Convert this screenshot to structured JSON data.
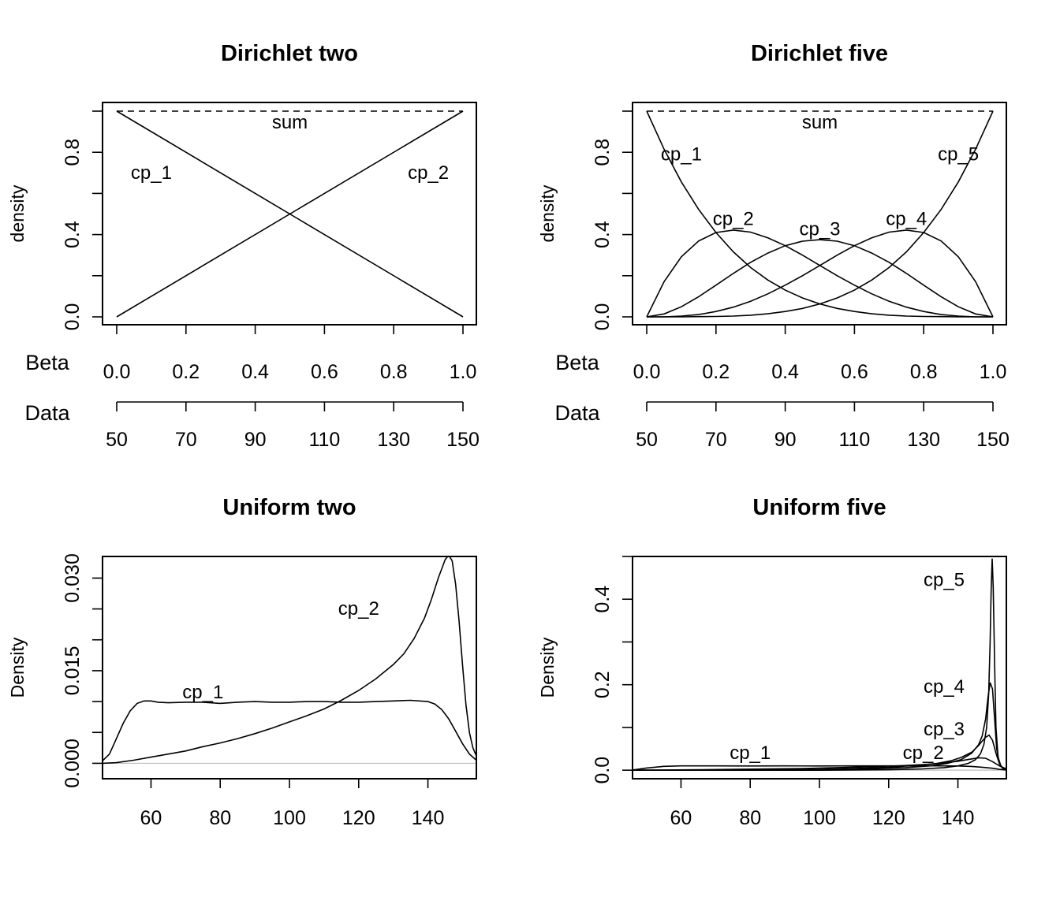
{
  "chart_data": [
    {
      "id": "p1",
      "type": "line",
      "title": "Dirichlet two",
      "ylabel": "density",
      "xlim": [
        0,
        1
      ],
      "ylim": [
        0,
        1
      ],
      "y_ticks": [
        0.0,
        0.2,
        0.4,
        0.6,
        0.8,
        1.0
      ],
      "y_tick_labels": [
        {
          "v": 0.0,
          "t": "0.0"
        },
        {
          "v": 0.4,
          "t": "0.4"
        },
        {
          "v": 0.8,
          "t": "0.8"
        }
      ],
      "beta_axis": {
        "label": "Beta",
        "ticks": [
          0.0,
          0.2,
          0.4,
          0.6,
          0.8,
          1.0
        ],
        "tick_labels": [
          "0.0",
          "0.2",
          "0.4",
          "0.6",
          "0.8",
          "1.0"
        ]
      },
      "data_axis": {
        "label": "Data",
        "ticks": [
          50,
          70,
          90,
          110,
          130,
          150
        ],
        "tick_labels": [
          "50",
          "70",
          "90",
          "110",
          "130",
          "150"
        ]
      },
      "series": [
        {
          "name": "cp_1",
          "x": [
            0,
            1
          ],
          "y": [
            1,
            0
          ],
          "label_at": [
            0.1,
            0.7
          ]
        },
        {
          "name": "cp_2",
          "x": [
            0,
            1
          ],
          "y": [
            0,
            1
          ],
          "label_at": [
            0.9,
            0.7
          ]
        },
        {
          "name": "sum",
          "dashed": true,
          "x": [
            0,
            1
          ],
          "y": [
            1,
            1
          ],
          "label_at": [
            0.5,
            0.945
          ]
        }
      ]
    },
    {
      "id": "p2",
      "type": "line",
      "title": "Dirichlet five",
      "ylabel": "density",
      "xlim": [
        0,
        1
      ],
      "ylim": [
        0,
        1
      ],
      "y_ticks": [
        0.0,
        0.2,
        0.4,
        0.6,
        0.8,
        1.0
      ],
      "y_tick_labels": [
        {
          "v": 0.0,
          "t": "0.0"
        },
        {
          "v": 0.4,
          "t": "0.4"
        },
        {
          "v": 0.8,
          "t": "0.8"
        }
      ],
      "beta_axis": {
        "label": "Beta",
        "ticks": [
          0.0,
          0.2,
          0.4,
          0.6,
          0.8,
          1.0
        ],
        "tick_labels": [
          "0.0",
          "0.2",
          "0.4",
          "0.6",
          "0.8",
          "1.0"
        ]
      },
      "data_axis": {
        "label": "Data",
        "ticks": [
          50,
          70,
          90,
          110,
          130,
          150
        ],
        "tick_labels": [
          "50",
          "70",
          "90",
          "110",
          "130",
          "150"
        ]
      },
      "series": [
        {
          "name": "cp_1",
          "x": [
            0,
            0.05,
            0.1,
            0.15,
            0.2,
            0.25,
            0.3,
            0.35,
            0.4,
            0.45,
            0.5,
            0.55,
            0.6,
            0.65,
            0.7,
            0.75,
            0.8,
            0.85,
            0.9,
            0.95,
            1
          ],
          "y": [
            1.0,
            0.815,
            0.656,
            0.522,
            0.41,
            0.316,
            0.24,
            0.179,
            0.13,
            0.092,
            0.063,
            0.041,
            0.026,
            0.015,
            0.008,
            0.004,
            0.002,
            0.001,
            0.0,
            0.0,
            0.0
          ],
          "label_at": [
            0.1,
            0.79
          ]
        },
        {
          "name": "cp_2",
          "x": [
            0,
            0.05,
            0.1,
            0.15,
            0.2,
            0.25,
            0.3,
            0.35,
            0.4,
            0.45,
            0.5,
            0.55,
            0.6,
            0.65,
            0.7,
            0.75,
            0.8,
            0.85,
            0.9,
            0.95,
            1
          ],
          "y": [
            0.0,
            0.171,
            0.292,
            0.369,
            0.41,
            0.422,
            0.412,
            0.384,
            0.346,
            0.3,
            0.25,
            0.2,
            0.154,
            0.112,
            0.076,
            0.047,
            0.026,
            0.011,
            0.004,
            0.0,
            0.0
          ],
          "label_at": [
            0.25,
            0.475
          ]
        },
        {
          "name": "cp_3",
          "x": [
            0,
            0.05,
            0.1,
            0.15,
            0.2,
            0.25,
            0.3,
            0.35,
            0.4,
            0.45,
            0.5,
            0.55,
            0.6,
            0.65,
            0.7,
            0.75,
            0.8,
            0.85,
            0.9,
            0.95,
            1
          ],
          "y": [
            0.0,
            0.014,
            0.049,
            0.098,
            0.154,
            0.211,
            0.265,
            0.31,
            0.346,
            0.368,
            0.375,
            0.368,
            0.346,
            0.31,
            0.265,
            0.211,
            0.154,
            0.098,
            0.049,
            0.014,
            0.0
          ],
          "label_at": [
            0.5,
            0.425
          ]
        },
        {
          "name": "cp_4",
          "x": [
            0,
            0.05,
            0.1,
            0.15,
            0.2,
            0.25,
            0.3,
            0.35,
            0.4,
            0.45,
            0.5,
            0.55,
            0.6,
            0.65,
            0.7,
            0.75,
            0.8,
            0.85,
            0.9,
            0.95,
            1
          ],
          "y": [
            0.0,
            0.0,
            0.004,
            0.011,
            0.026,
            0.047,
            0.076,
            0.112,
            0.154,
            0.2,
            0.25,
            0.3,
            0.346,
            0.384,
            0.412,
            0.422,
            0.41,
            0.369,
            0.292,
            0.171,
            0.0
          ],
          "label_at": [
            0.75,
            0.475
          ]
        },
        {
          "name": "cp_5",
          "x": [
            0,
            0.05,
            0.1,
            0.15,
            0.2,
            0.25,
            0.3,
            0.35,
            0.4,
            0.45,
            0.5,
            0.55,
            0.6,
            0.65,
            0.7,
            0.75,
            0.8,
            0.85,
            0.9,
            0.95,
            1
          ],
          "y": [
            0.0,
            0.0,
            0.0,
            0.001,
            0.002,
            0.004,
            0.008,
            0.015,
            0.026,
            0.041,
            0.063,
            0.092,
            0.13,
            0.179,
            0.24,
            0.316,
            0.41,
            0.522,
            0.656,
            0.815,
            1.0
          ],
          "label_at": [
            0.9,
            0.79
          ]
        },
        {
          "name": "sum",
          "dashed": true,
          "x": [
            0,
            1
          ],
          "y": [
            1,
            1
          ],
          "label_at": [
            0.5,
            0.945
          ]
        }
      ]
    },
    {
      "id": "p3",
      "type": "line",
      "title": "Uniform two",
      "ylabel": "Density",
      "xlim": [
        46,
        154
      ],
      "ylim": [
        -0.0025,
        0.0335
      ],
      "baseline": 0,
      "x_ticks": [
        60,
        80,
        100,
        120,
        140
      ],
      "x_tick_labels": [
        "60",
        "80",
        "100",
        "120",
        "140"
      ],
      "y_ticks": [
        0.0,
        0.005,
        0.01,
        0.015,
        0.02,
        0.025,
        0.03
      ],
      "y_tick_labels": [
        {
          "v": 0.0,
          "t": "0.000"
        },
        {
          "v": 0.015,
          "t": "0.015"
        },
        {
          "v": 0.03,
          "t": "0.030"
        }
      ],
      "series": [
        {
          "name": "cp_1",
          "x": [
            46,
            48,
            50,
            52,
            54,
            56,
            58,
            60,
            62,
            65,
            70,
            75,
            80,
            85,
            90,
            95,
            100,
            105,
            110,
            115,
            120,
            125,
            130,
            135,
            140,
            142,
            144,
            146,
            148,
            150,
            152,
            154
          ],
          "y": [
            0.0004,
            0.0015,
            0.004,
            0.0065,
            0.0085,
            0.0097,
            0.0101,
            0.0101,
            0.0099,
            0.0098,
            0.0099,
            0.0099,
            0.0097,
            0.0099,
            0.01,
            0.0099,
            0.0099,
            0.01,
            0.01,
            0.0099,
            0.0099,
            0.01,
            0.0101,
            0.0102,
            0.01,
            0.0096,
            0.0087,
            0.0072,
            0.0052,
            0.0032,
            0.0015,
            0.0005
          ],
          "label_at": [
            75,
            0.0115
          ]
        },
        {
          "name": "cp_2",
          "x": [
            46,
            50,
            55,
            60,
            65,
            70,
            75,
            80,
            85,
            90,
            95,
            100,
            105,
            110,
            115,
            120,
            125,
            130,
            133,
            136,
            139,
            141,
            143,
            145,
            146,
            147,
            148,
            149,
            150,
            151,
            152,
            153,
            154
          ],
          "y": [
            0.0,
            0.0001,
            0.0005,
            0.001,
            0.0015,
            0.002,
            0.0027,
            0.0033,
            0.004,
            0.0048,
            0.0057,
            0.0067,
            0.0077,
            0.0088,
            0.0102,
            0.0118,
            0.0137,
            0.016,
            0.0177,
            0.0202,
            0.0235,
            0.0265,
            0.03,
            0.033,
            0.0337,
            0.0328,
            0.029,
            0.023,
            0.016,
            0.0095,
            0.005,
            0.0025,
            0.0012
          ],
          "label_at": [
            120,
            0.025
          ]
        }
      ]
    },
    {
      "id": "p4",
      "type": "line",
      "title": "Uniform five",
      "ylabel": "Density",
      "xlim": [
        46,
        154
      ],
      "ylim": [
        -0.02,
        0.5
      ],
      "baseline": 0,
      "x_ticks": [
        60,
        80,
        100,
        120,
        140
      ],
      "x_tick_labels": [
        "60",
        "80",
        "100",
        "120",
        "140"
      ],
      "y_ticks": [
        0.0,
        0.1,
        0.2,
        0.3,
        0.4,
        0.5
      ],
      "y_tick_labels": [
        {
          "v": 0.0,
          "t": "0.0"
        },
        {
          "v": 0.2,
          "t": "0.2"
        },
        {
          "v": 0.4,
          "t": "0.4"
        }
      ],
      "series": [
        {
          "name": "cp_1",
          "x": [
            46,
            50,
            55,
            60,
            70,
            80,
            90,
            100,
            110,
            120,
            130,
            135,
            140,
            144,
            147,
            150,
            152,
            154
          ],
          "y": [
            0.0005,
            0.005,
            0.009,
            0.01,
            0.01,
            0.0099,
            0.01,
            0.0099,
            0.01,
            0.01,
            0.0102,
            0.0101,
            0.0098,
            0.0088,
            0.007,
            0.0045,
            0.002,
            0.0005
          ],
          "label_at": [
            80,
            0.04
          ]
        },
        {
          "name": "cp_2",
          "x": [
            46,
            55,
            65,
            75,
            85,
            95,
            105,
            115,
            125,
            130,
            135,
            140,
            143,
            146,
            148,
            150,
            152,
            154
          ],
          "y": [
            0.0,
            0.0005,
            0.001,
            0.002,
            0.003,
            0.004,
            0.006,
            0.008,
            0.011,
            0.013,
            0.016,
            0.021,
            0.025,
            0.029,
            0.028,
            0.02,
            0.01,
            0.003
          ],
          "label_at": [
            130,
            0.04
          ]
        },
        {
          "name": "cp_3",
          "x": [
            46,
            60,
            80,
            100,
            110,
            120,
            128,
            134,
            138,
            141,
            144,
            146,
            147,
            148,
            149,
            150,
            151,
            152,
            153,
            154
          ],
          "y": [
            0.0,
            0.0,
            0.0005,
            0.002,
            0.004,
            0.007,
            0.011,
            0.016,
            0.022,
            0.03,
            0.042,
            0.058,
            0.068,
            0.077,
            0.082,
            0.07,
            0.04,
            0.015,
            0.004,
            0.001
          ],
          "label_at": [
            136,
            0.095
          ]
        },
        {
          "name": "cp_4",
          "x": [
            46,
            80,
            100,
            115,
            125,
            132,
            137,
            141,
            144,
            146,
            147,
            148,
            148.7,
            149.3,
            150,
            150.6,
            151.2,
            152,
            153,
            154
          ],
          "y": [
            0.0,
            0.0,
            0.001,
            0.003,
            0.006,
            0.01,
            0.016,
            0.025,
            0.04,
            0.06,
            0.08,
            0.12,
            0.17,
            0.205,
            0.19,
            0.12,
            0.05,
            0.015,
            0.004,
            0.001
          ],
          "label_at": [
            136,
            0.195
          ]
        },
        {
          "name": "cp_5",
          "x": [
            46,
            100,
            120,
            130,
            136,
            140,
            143,
            145,
            146.5,
            147.5,
            148.3,
            148.9,
            149.3,
            149.6,
            149.9,
            150.2,
            150.6,
            151,
            151.6,
            152.5,
            154
          ],
          "y": [
            0.0,
            0.0,
            0.001,
            0.003,
            0.006,
            0.01,
            0.016,
            0.024,
            0.038,
            0.06,
            0.1,
            0.18,
            0.3,
            0.42,
            0.495,
            0.43,
            0.25,
            0.1,
            0.03,
            0.008,
            0.001
          ],
          "label_at": [
            136,
            0.445
          ]
        }
      ]
    }
  ]
}
